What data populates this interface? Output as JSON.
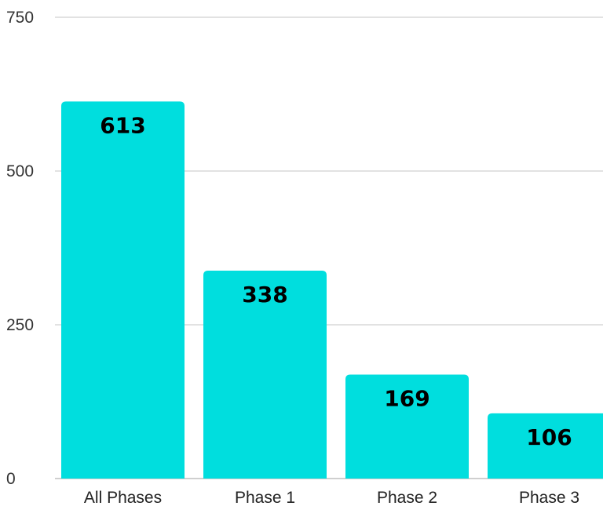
{
  "chart_data": {
    "type": "bar",
    "categories": [
      "All Phases",
      "Phase 1",
      "Phase 2",
      "Phase 3"
    ],
    "values": [
      613,
      338,
      169,
      106
    ],
    "data_labels": [
      "613",
      "338",
      "169",
      "106"
    ],
    "yticks": [
      0,
      250,
      500,
      750
    ],
    "ytick_labels": [
      "0",
      "250",
      "500",
      "750"
    ],
    "ylim": [
      0,
      750
    ],
    "grid": true,
    "bar_color": "#00dede",
    "title": "",
    "xlabel": "",
    "ylabel": ""
  }
}
